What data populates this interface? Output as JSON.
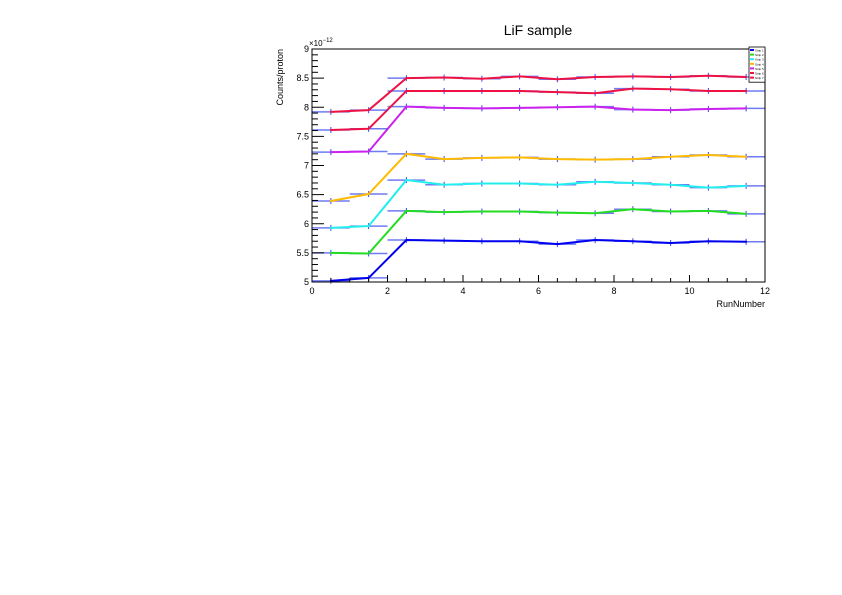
{
  "chart_data": {
    "type": "line",
    "title": "LiF sample",
    "xlabel": "RunNumber",
    "ylabel": "Counts/proton",
    "y_exponent_label": "×10",
    "y_exponent": "−12",
    "xlim": [
      0,
      12
    ],
    "ylim": [
      5,
      9
    ],
    "x_ticks": [
      "0",
      "2",
      "4",
      "6",
      "8",
      "10",
      "12"
    ],
    "y_ticks": [
      "5",
      "5.5",
      "6",
      "6.5",
      "7",
      "7.5",
      "8",
      "8.5",
      "9"
    ],
    "grid": false,
    "legend_placement": "top-right",
    "x": [
      0.5,
      1.5,
      2.5,
      3.5,
      4.5,
      5.5,
      6.5,
      7.5,
      8.5,
      9.5,
      10.5,
      11.5
    ],
    "series": [
      {
        "name": "Strip 1",
        "color": "#0000ee",
        "values": [
          5.02,
          5.07,
          5.72,
          5.71,
          5.7,
          5.7,
          5.65,
          5.72,
          5.7,
          5.67,
          5.7,
          5.69
        ]
      },
      {
        "name": "Strip 2",
        "color": "#22dd22",
        "values": [
          5.5,
          5.49,
          6.22,
          6.2,
          6.21,
          6.21,
          6.19,
          6.18,
          6.25,
          6.21,
          6.22,
          6.17
        ]
      },
      {
        "name": "Strip 3",
        "color": "#22eeee",
        "values": [
          5.93,
          5.96,
          6.75,
          6.67,
          6.69,
          6.69,
          6.67,
          6.72,
          6.7,
          6.67,
          6.62,
          6.65
        ]
      },
      {
        "name": "Strip 4",
        "color": "#ffbb00",
        "values": [
          6.39,
          6.51,
          7.2,
          7.11,
          7.13,
          7.14,
          7.11,
          7.1,
          7.11,
          7.15,
          7.18,
          7.15
        ]
      },
      {
        "name": "Strip 5",
        "color": "#cc22ee",
        "values": [
          7.23,
          7.24,
          8.01,
          7.99,
          7.98,
          7.99,
          8.0,
          8.01,
          7.96,
          7.95,
          7.97,
          7.98
        ]
      },
      {
        "name": "Strip 6",
        "color": "#ee1144",
        "values": [
          7.61,
          7.63,
          8.28,
          8.28,
          8.28,
          8.28,
          8.26,
          8.24,
          8.32,
          8.31,
          8.28,
          8.28
        ]
      },
      {
        "name": "Strip 7",
        "color": "#ee1144",
        "values": [
          7.92,
          7.95,
          8.5,
          8.51,
          8.49,
          8.53,
          8.48,
          8.52,
          8.53,
          8.52,
          8.54,
          8.52
        ]
      }
    ]
  }
}
